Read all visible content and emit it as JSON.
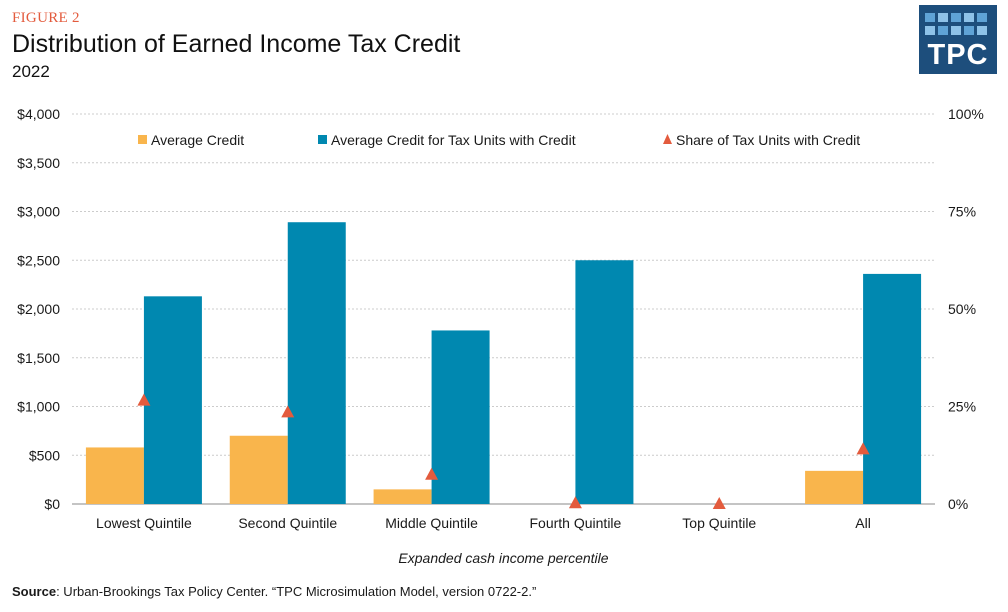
{
  "figure_label": "FIGURE 2",
  "title": "Distribution of Earned Income Tax Credit",
  "subtitle": "2022",
  "logo_text": "TPC",
  "source_label": "Source",
  "source_text": ": Urban-Brookings Tax Policy Center. “TPC Microsimulation Model, version 0722-2.”",
  "colors": {
    "average_credit": "#f9b54c",
    "average_credit_with_credit": "#0088b0",
    "share": "#e35b3d",
    "grid": "#cccccc",
    "logo_bg": "#1d4e7c"
  },
  "chart_data": {
    "type": "bar",
    "xlabel": "Expanded cash income percentile",
    "ylabel_left": "",
    "ylabel_right": "",
    "categories": [
      "Lowest Quintile",
      "Second Quintile",
      "Middle Quintile",
      "Fourth Quintile",
      "Top Quintile",
      "All"
    ],
    "series": [
      {
        "name": "Average Credit",
        "kind": "bar",
        "axis": "left",
        "values": [
          580,
          700,
          150,
          0,
          0,
          340
        ]
      },
      {
        "name": "Average Credit for Tax Units with Credit",
        "kind": "bar",
        "axis": "left",
        "values": [
          2130,
          2890,
          1780,
          2500,
          null,
          2360
        ]
      },
      {
        "name": "Share of Tax Units with Credit",
        "kind": "marker",
        "axis": "right",
        "values": [
          26.5,
          23.5,
          7.5,
          0.2,
          0.0,
          14.0
        ]
      }
    ],
    "ylim_left": [
      0,
      4000
    ],
    "ylim_right": [
      0,
      100
    ],
    "left_ticks": [
      "$0",
      "$500",
      "$1,000",
      "$1,500",
      "$2,000",
      "$2,500",
      "$3,000",
      "$3,500",
      "$4,000"
    ],
    "right_ticks": [
      "0%",
      "25%",
      "50%",
      "75%",
      "100%"
    ],
    "grid": true,
    "legend_position": "top"
  }
}
